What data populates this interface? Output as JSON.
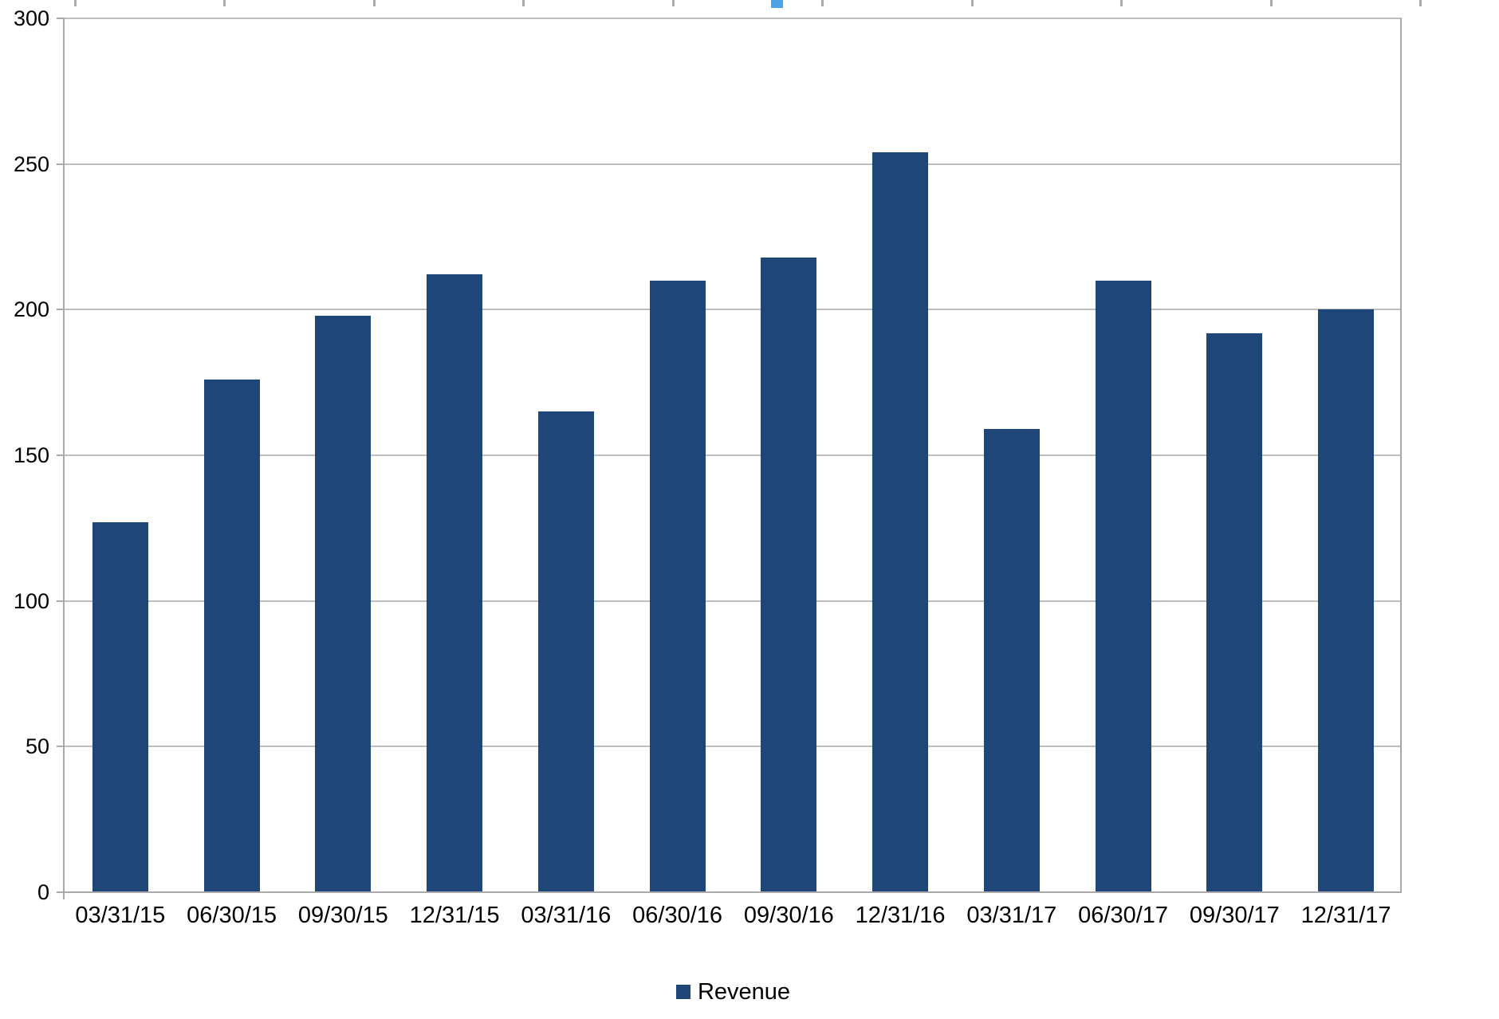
{
  "chart_data": {
    "type": "bar",
    "title": "",
    "xlabel": "",
    "ylabel": "",
    "categories": [
      "03/31/15",
      "06/30/15",
      "09/30/15",
      "12/31/15",
      "03/31/16",
      "06/30/16",
      "09/30/16",
      "12/31/16",
      "03/31/17",
      "06/30/17",
      "09/30/17",
      "12/31/17"
    ],
    "series": [
      {
        "name": "Revenue",
        "values": [
          127,
          176,
          198,
          212,
          165,
          210,
          218,
          254,
          159,
          210,
          192,
          200
        ]
      }
    ],
    "ylim": [
      0,
      300
    ],
    "yticks": [
      0,
      50,
      100,
      150,
      200,
      250,
      300
    ],
    "grid": true,
    "legend_position": "bottom",
    "colors": {
      "bar": "#1E4679",
      "gridline": "#BEBEBE",
      "axis": "#A9A9A9",
      "text": "#000000"
    }
  },
  "artifacts": {
    "top_tick_marks_x": [
      94,
      281,
      469,
      656,
      844,
      1031,
      1219,
      1406,
      1594,
      1781
    ],
    "top_tick_color": "#ACACAC",
    "selection_handle_x": 967,
    "selection_handle_color": "#4DA3E8"
  }
}
